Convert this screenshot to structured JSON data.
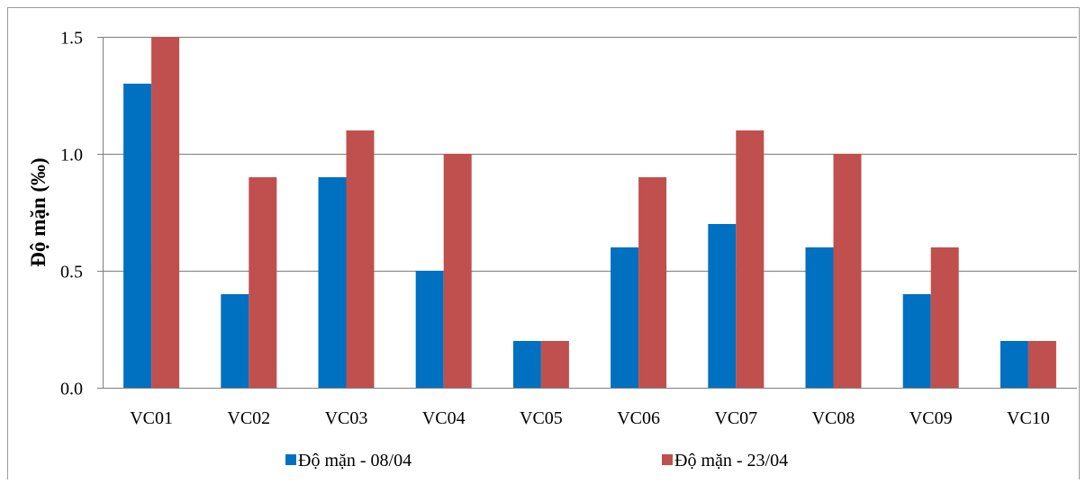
{
  "chart_data": {
    "type": "bar",
    "categories": [
      "VC01",
      "VC02",
      "VC03",
      "VC04",
      "VC05",
      "VC06",
      "VC07",
      "VC08",
      "VC09",
      "VC10"
    ],
    "series": [
      {
        "name": "Độ mặn - 08/04",
        "color": "#0070C0",
        "values": [
          1.3,
          0.4,
          0.9,
          0.5,
          0.2,
          0.6,
          0.7,
          0.6,
          0.4,
          0.2
        ]
      },
      {
        "name": "Độ mặn - 23/04",
        "color": "#C0504D",
        "values": [
          1.5,
          0.9,
          1.1,
          1.0,
          0.2,
          0.9,
          1.1,
          1.0,
          0.6,
          0.2
        ]
      }
    ],
    "xlabel": "",
    "ylabel": "Độ mặn (‰)",
    "ylim": [
      0,
      1.5
    ],
    "yticks": [
      "0.0",
      "0.5",
      "1.0",
      "1.5"
    ],
    "ytick_values": [
      0,
      0.5,
      1.0,
      1.5
    ],
    "grid": true,
    "legend": "bottom"
  }
}
